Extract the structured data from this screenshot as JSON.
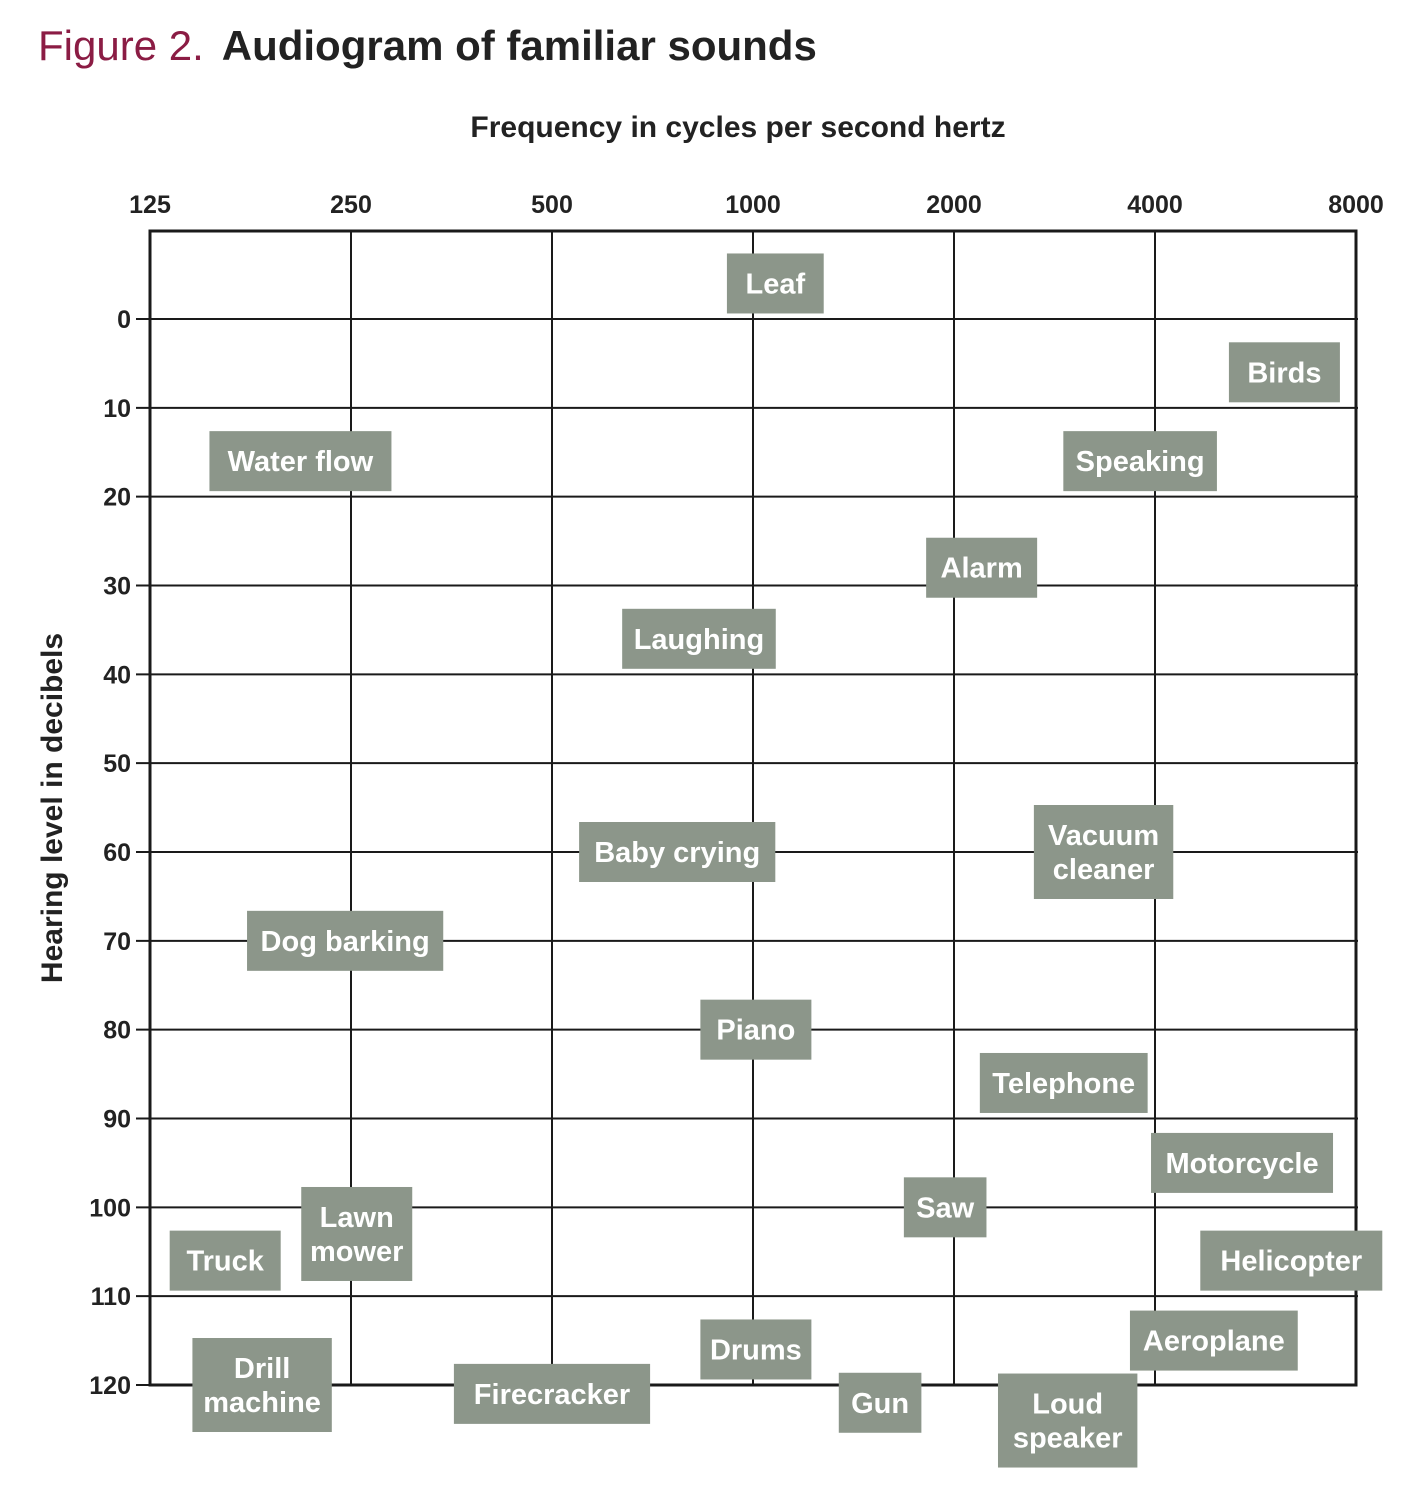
{
  "figure": {
    "label": "Figure 2.",
    "caption": "Audiogram of familiar sounds",
    "label_color": "#8b1c44"
  },
  "chart_data": {
    "type": "scatter",
    "xlabel": "Frequency in cycles per second hertz",
    "ylabel": "Hearing level in decibels",
    "x_scale": "log2",
    "x_ticks": [
      125,
      250,
      500,
      1000,
      2000,
      4000,
      8000
    ],
    "x_tick_labels": [
      "125",
      "250",
      "500",
      "1000",
      "2000",
      "4000",
      "8000"
    ],
    "y_ticks": [
      0,
      10,
      20,
      30,
      40,
      50,
      60,
      70,
      80,
      90,
      100,
      110,
      120
    ],
    "y_tick_labels": [
      "0",
      "10",
      "20",
      "30",
      "40",
      "50",
      "60",
      "70",
      "80",
      "90",
      "100",
      "110",
      "120"
    ],
    "y_inverted": true,
    "xlim": [
      125,
      8000
    ],
    "ylim": [
      -10,
      120
    ],
    "grid": true,
    "box_color": "#8c968a",
    "points": [
      {
        "label": "Leaf",
        "x": 1080,
        "y": -4
      },
      {
        "label": "Birds",
        "x": 6250,
        "y": 6
      },
      {
        "label": "Water flow",
        "x": 210,
        "y": 16
      },
      {
        "label": "Speaking",
        "x": 3800,
        "y": 16
      },
      {
        "label": "Alarm",
        "x": 2200,
        "y": 28
      },
      {
        "label": "Laughing",
        "x": 830,
        "y": 36
      },
      {
        "label": "Vacuum cleaner",
        "x": 3350,
        "y": 60
      },
      {
        "label": "Baby crying",
        "x": 770,
        "y": 60
      },
      {
        "label": "Dog barking",
        "x": 245,
        "y": 70
      },
      {
        "label": "Piano",
        "x": 1010,
        "y": 80
      },
      {
        "label": "Telephone",
        "x": 2920,
        "y": 86
      },
      {
        "label": "Motorcycle",
        "x": 5400,
        "y": 95
      },
      {
        "label": "Saw",
        "x": 1940,
        "y": 100
      },
      {
        "label": "Lawn mower",
        "x": 255,
        "y": 103
      },
      {
        "label": "Truck",
        "x": 162,
        "y": 106
      },
      {
        "label": "Helicopter",
        "x": 6400,
        "y": 106
      },
      {
        "label": "Aeroplane",
        "x": 4900,
        "y": 115
      },
      {
        "label": "Drums",
        "x": 1010,
        "y": 116
      },
      {
        "label": "Drill machine",
        "x": 184,
        "y": 120
      },
      {
        "label": "Firecracker",
        "x": 500,
        "y": 121
      },
      {
        "label": "Gun",
        "x": 1550,
        "y": 122
      },
      {
        "label": "Loud speaker",
        "x": 2960,
        "y": 124
      }
    ]
  }
}
